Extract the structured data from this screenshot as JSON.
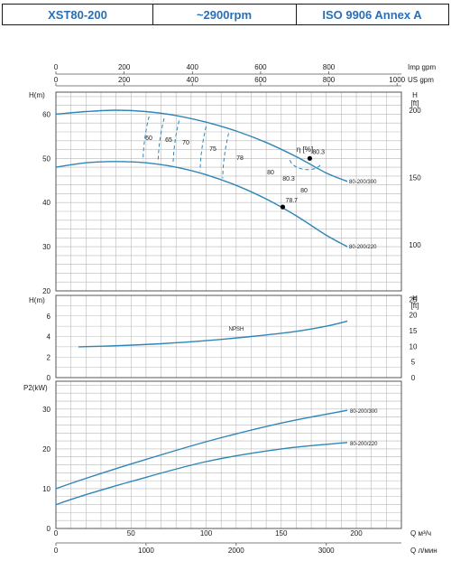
{
  "header": {
    "model": "XST80-200",
    "speed": "~2900rpm",
    "standard": "ISO 9906   Annex A"
  },
  "colors": {
    "curve": "#2e86b8",
    "grid": "#b8b8b8",
    "frame": "#555555",
    "text": "#1a1a1a",
    "accent": "#2a6fb5"
  },
  "axes": {
    "imp_label": "Imp gpm",
    "imp_ticks": [
      "0",
      "200",
      "400",
      "600",
      "800"
    ],
    "us_label": "US gpm",
    "us_ticks": [
      "0",
      "200",
      "400",
      "600",
      "800",
      "1000"
    ],
    "q_label": "Q  м³/ч",
    "q_ticks": [
      "0",
      "50",
      "100",
      "150",
      "200"
    ],
    "l_label": "Q  л/мин",
    "l_ticks": [
      "0",
      "1000",
      "2000",
      "3000"
    ]
  },
  "chart_data": [
    {
      "type": "line",
      "title": "",
      "xlabel": "Q  м³/ч",
      "ylabel": "H(m)",
      "ylabel_right": "H [ft]",
      "xlim": [
        0,
        230
      ],
      "ylim": [
        20,
        65
      ],
      "yticks": [
        "20",
        "30",
        "40",
        "50",
        "60"
      ],
      "yticks_right": [
        "100",
        "150",
        "200"
      ],
      "efficiency_label": "η [%]",
      "series": [
        {
          "name": "80-200/300",
          "x": [
            0,
            20,
            40,
            60,
            80,
            100,
            120,
            140,
            160,
            180,
            194
          ],
          "y": [
            60.0,
            60.6,
            60.9,
            60.6,
            59.7,
            58.2,
            56.2,
            53.6,
            50.4,
            46.7,
            44.8
          ]
        },
        {
          "name": "80-200/220",
          "x": [
            0,
            20,
            40,
            60,
            80,
            100,
            120,
            140,
            160,
            180,
            194
          ],
          "y": [
            48.0,
            49.0,
            49.3,
            49.0,
            48.0,
            46.3,
            43.9,
            40.8,
            37.0,
            32.6,
            30.0
          ]
        }
      ],
      "efficiency_labels": [
        "60",
        "65",
        "70",
        "75",
        "78",
        "80",
        "80.3",
        "80"
      ],
      "efficiency_points": [
        {
          "label": "80.3",
          "x": 169,
          "y": 50.0
        },
        {
          "label": "78.7",
          "x": 151,
          "y": 39.0
        }
      ]
    },
    {
      "type": "line",
      "title": "",
      "xlabel": "Q  м³/ч",
      "ylabel": "H(m)",
      "ylabel_right": "H [ft]",
      "xlim": [
        0,
        230
      ],
      "ylim": [
        0,
        8
      ],
      "yticks": [
        "0",
        "2",
        "4",
        "6"
      ],
      "yticks_right": [
        "0",
        "5",
        "10",
        "15",
        "20",
        "25"
      ],
      "series": [
        {
          "name": "NPSH",
          "x": [
            15,
            40,
            70,
            100,
            130,
            160,
            180,
            194
          ],
          "y": [
            3.0,
            3.1,
            3.3,
            3.6,
            4.0,
            4.5,
            5.0,
            5.5
          ]
        }
      ]
    },
    {
      "type": "line",
      "title": "",
      "xlabel": "Q  м³/ч",
      "ylabel": "P2(kW)",
      "xlim": [
        0,
        230
      ],
      "ylim": [
        0,
        37
      ],
      "yticks": [
        "0",
        "10",
        "20",
        "30"
      ],
      "series": [
        {
          "name": "80-200/300",
          "x": [
            0,
            20,
            50,
            100,
            150,
            194
          ],
          "y": [
            10.0,
            12.6,
            16.2,
            21.8,
            26.5,
            29.7
          ]
        },
        {
          "name": "80-200/220",
          "x": [
            0,
            20,
            50,
            100,
            150,
            194
          ],
          "y": [
            6.0,
            8.5,
            11.8,
            16.8,
            20.0,
            21.6
          ]
        }
      ]
    }
  ]
}
